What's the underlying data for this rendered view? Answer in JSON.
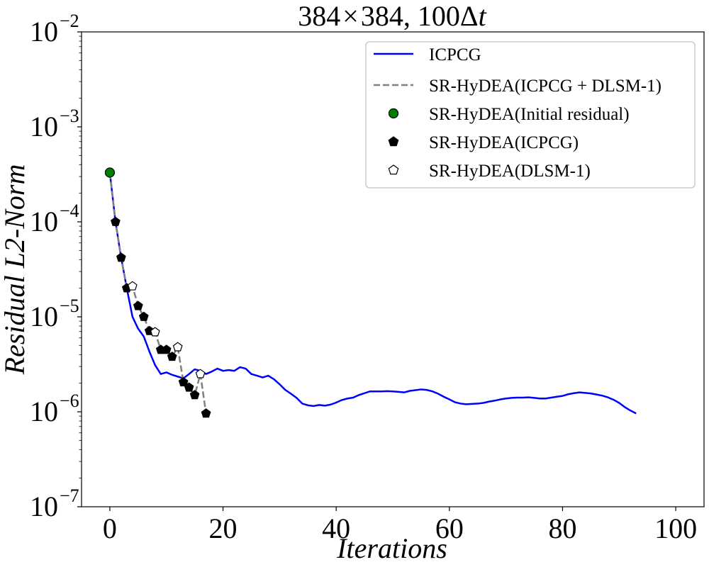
{
  "chart_data": {
    "type": "line",
    "title": "384 × 384, 100Δt",
    "title_parts": {
      "res": "384",
      "times": "×",
      "res2": "384",
      "steps": "100Δ",
      "var": "t"
    },
    "xlabel": "Iterations",
    "ylabel": "Residual L2-Norm",
    "xlim": [
      -5,
      105
    ],
    "ylim": [
      1e-07,
      0.01
    ],
    "yscale": "log",
    "grid": false,
    "legend_position": "top-right",
    "x_ticks": [
      0,
      20,
      40,
      60,
      80,
      100
    ],
    "x_tick_labels": [
      "0",
      "20",
      "40",
      "60",
      "80",
      "100"
    ],
    "y_ticks": [
      1e-07,
      1e-06,
      1e-05,
      0.0001,
      0.001,
      0.01
    ],
    "y_tick_labels": [
      {
        "base": "10",
        "exp": "−7"
      },
      {
        "base": "10",
        "exp": "−6"
      },
      {
        "base": "10",
        "exp": "−5"
      },
      {
        "base": "10",
        "exp": "−4"
      },
      {
        "base": "10",
        "exp": "−3"
      },
      {
        "base": "10",
        "exp": "−2"
      }
    ],
    "series": [
      {
        "name": "ICPCG",
        "kind": "line",
        "color": "#0000ff",
        "x": [
          0,
          1,
          2,
          3,
          4,
          5,
          6,
          7,
          8,
          9,
          10,
          11,
          12,
          13,
          14,
          15,
          16,
          17,
          18,
          19,
          20,
          21,
          22,
          23,
          24,
          25,
          26,
          27,
          28,
          29,
          30,
          31,
          32,
          33,
          34,
          35,
          36,
          37,
          38,
          39,
          40,
          41,
          42,
          43,
          44,
          45,
          46,
          47,
          48,
          49,
          50,
          51,
          52,
          53,
          54,
          55,
          56,
          57,
          58,
          59,
          60,
          61,
          62,
          63,
          64,
          65,
          66,
          67,
          68,
          69,
          70,
          71,
          72,
          73,
          74,
          75,
          76,
          77,
          78,
          79,
          80,
          81,
          82,
          83,
          84,
          85,
          86,
          87,
          88,
          89,
          90,
          91,
          92,
          93
        ],
        "y": [
          0.00033,
          0.0001,
          4.2e-05,
          2e-05,
          1e-05,
          7.5e-06,
          6.2e-06,
          4.3e-06,
          3.1e-06,
          2.5e-06,
          2.6e-06,
          2.45e-06,
          2.35e-06,
          2.25e-06,
          2.5e-06,
          2.8e-06,
          2.7e-06,
          2.5e-06,
          2.65e-06,
          2.85e-06,
          2.7e-06,
          2.75e-06,
          2.7e-06,
          2.95e-06,
          2.85e-06,
          2.5e-06,
          2.4e-06,
          2.3e-06,
          2.4e-06,
          2.2e-06,
          1.95e-06,
          1.7e-06,
          1.55e-06,
          1.4e-06,
          1.22e-06,
          1.17e-06,
          1.15e-06,
          1.18e-06,
          1.16e-06,
          1.19e-06,
          1.25e-06,
          1.33e-06,
          1.38e-06,
          1.41e-06,
          1.5e-06,
          1.57e-06,
          1.64e-06,
          1.64e-06,
          1.64e-06,
          1.65e-06,
          1.64e-06,
          1.62e-06,
          1.6e-06,
          1.66e-06,
          1.69e-06,
          1.72e-06,
          1.7e-06,
          1.64e-06,
          1.55e-06,
          1.44e-06,
          1.35e-06,
          1.26e-06,
          1.22e-06,
          1.2e-06,
          1.21e-06,
          1.22e-06,
          1.24e-06,
          1.28e-06,
          1.31e-06,
          1.35e-06,
          1.38e-06,
          1.4e-06,
          1.41e-06,
          1.41e-06,
          1.42e-06,
          1.4e-06,
          1.38e-06,
          1.38e-06,
          1.41e-06,
          1.44e-06,
          1.47e-06,
          1.53e-06,
          1.57e-06,
          1.6e-06,
          1.58e-06,
          1.56e-06,
          1.52e-06,
          1.48e-06,
          1.42e-06,
          1.34e-06,
          1.24e-06,
          1.12e-06,
          1.03e-06,
          9.6e-07
        ]
      },
      {
        "name": "SR-HyDEA(ICPCG + DLSM-1)",
        "kind": "dashed-line",
        "color": "#808080",
        "x": [
          0,
          1,
          2,
          3,
          4,
          5,
          6,
          7,
          8,
          9,
          10,
          11,
          12,
          13,
          14,
          15,
          16,
          17
        ],
        "y": [
          0.00033,
          0.0001,
          4.2e-05,
          2e-05,
          2.1e-05,
          1.3e-05,
          1e-05,
          7.1e-06,
          6.9e-06,
          4.5e-06,
          4.5e-06,
          3.8e-06,
          4.8e-06,
          2.05e-06,
          1.8e-06,
          1.5e-06,
          2.5e-06,
          9.6e-07
        ]
      },
      {
        "name": "SR-HyDEA(Initial residual)",
        "kind": "marker-circle",
        "color": "#008000",
        "x": [
          0
        ],
        "y": [
          0.00033
        ]
      },
      {
        "name": "SR-HyDEA(ICPCG)",
        "kind": "marker-pentagon-filled",
        "color": "#000000",
        "x": [
          1,
          2,
          3,
          5,
          6,
          7,
          9,
          10,
          11,
          13,
          14,
          15,
          17
        ],
        "y": [
          0.0001,
          4.2e-05,
          2e-05,
          1.3e-05,
          1e-05,
          7.1e-06,
          4.5e-06,
          4.5e-06,
          3.8e-06,
          2.05e-06,
          1.8e-06,
          1.5e-06,
          9.6e-07
        ]
      },
      {
        "name": "SR-HyDEA(DLSM-1)",
        "kind": "marker-pentagon-open",
        "color": "#000000",
        "x": [
          4,
          8,
          12,
          16
        ],
        "y": [
          2.1e-05,
          6.9e-06,
          4.8e-06,
          2.5e-06
        ]
      }
    ]
  }
}
